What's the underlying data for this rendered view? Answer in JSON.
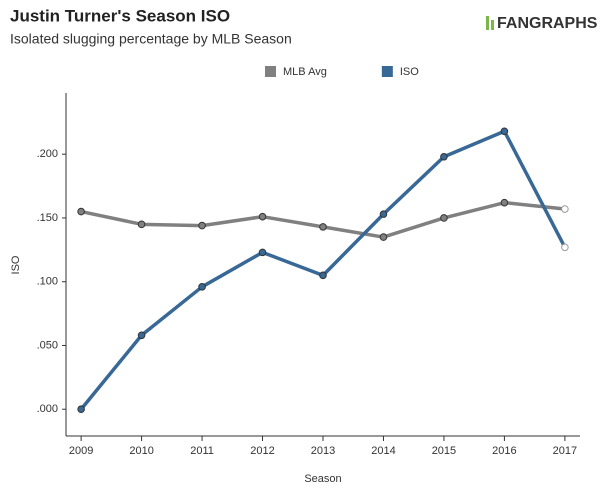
{
  "chart_data": {
    "type": "line",
    "title": "Justin Turner's Season ISO",
    "subtitle": "Isolated slugging percentage by MLB Season",
    "logo": "FANGRAPHS",
    "x_label": "Season",
    "y_label": "ISO",
    "x": [
      2009,
      2010,
      2011,
      2012,
      2013,
      2014,
      2015,
      2016,
      2017
    ],
    "series": [
      {
        "name": "MLB Avg",
        "color": "#808080",
        "values": [
          0.155,
          0.145,
          0.144,
          0.151,
          0.143,
          0.135,
          0.15,
          0.162,
          0.157
        ]
      },
      {
        "name": "ISO",
        "color": "#386896",
        "values": [
          0.0,
          0.058,
          0.096,
          0.123,
          0.105,
          0.153,
          0.198,
          0.218,
          0.127
        ]
      }
    ],
    "xlim": [
      2008.75,
      2017.25
    ],
    "xticks": [
      2009,
      2010,
      2011,
      2012,
      2013,
      2014,
      2015,
      2016,
      2017
    ],
    "ylim": [
      -0.021,
      0.248
    ],
    "yticks": [
      {
        "value": 0,
        "label": ".000"
      },
      {
        "value": 0.05,
        "label": ".050"
      },
      {
        "value": 0.1,
        "label": ".100"
      },
      {
        "value": 0.15,
        "label": ".150"
      },
      {
        "value": 0.2,
        "label": ".200"
      }
    ],
    "legend": "top",
    "grid": false
  }
}
